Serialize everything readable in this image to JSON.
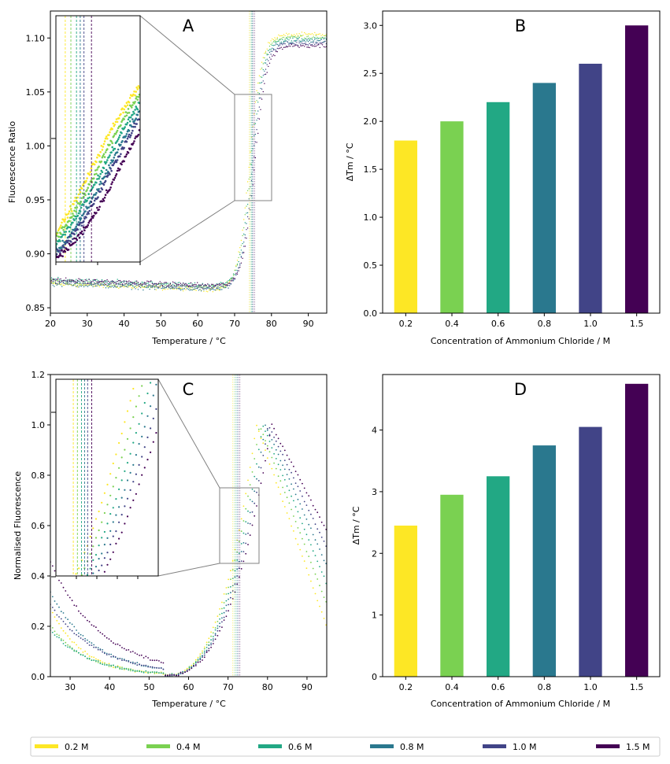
{
  "legend": {
    "position": "bottom",
    "entries": [
      {
        "label": "0.2 M",
        "color": "#fde725"
      },
      {
        "label": "0.4 M",
        "color": "#7ad151"
      },
      {
        "label": "0.6 M",
        "color": "#22a884"
      },
      {
        "label": "0.8 M",
        "color": "#2a788e"
      },
      {
        "label": "1.0 M",
        "color": "#414487"
      },
      {
        "label": "1.5 M",
        "color": "#440154"
      }
    ]
  },
  "chart_data": [
    {
      "panel": "A",
      "type": "scatter",
      "xlabel": "Temperature / °C",
      "ylabel": "Fluorescence Ratio",
      "xlim": [
        20,
        95
      ],
      "ylim": [
        0.845,
        1.125
      ],
      "xticks": [
        "20",
        "30",
        "40",
        "50",
        "60",
        "70",
        "80",
        "90"
      ],
      "yticks": [
        "0.85",
        "0.90",
        "0.95",
        "1.00",
        "1.05",
        "1.10"
      ],
      "series_tm": [
        74.0,
        74.3,
        74.6,
        74.8,
        75.0,
        75.4
      ],
      "zoom_box": {
        "x": [
          70,
          80
        ],
        "y": [
          0.95,
          1.05
        ]
      }
    },
    {
      "panel": "B",
      "type": "bar",
      "title": "B",
      "xlabel": "Concentration of Ammonium Chloride / M",
      "ylabel": "ΔTm / °C",
      "categories": [
        "0.2",
        "0.4",
        "0.6",
        "0.8",
        "1.0",
        "1.5"
      ],
      "values": [
        1.8,
        2.0,
        2.2,
        2.4,
        2.6,
        3.0
      ],
      "ylim": [
        0,
        3.15
      ],
      "yticks": [
        "0.0",
        "0.5",
        "1.0",
        "1.5",
        "2.0",
        "2.5",
        "3.0"
      ]
    },
    {
      "panel": "C",
      "type": "scatter",
      "xlabel": "Temperature / °C",
      "ylabel": "Normalised Fluorescence",
      "xlim": [
        25,
        95
      ],
      "ylim": [
        0.0,
        1.2
      ],
      "xticks": [
        "30",
        "40",
        "50",
        "60",
        "70",
        "80",
        "90"
      ],
      "yticks": [
        "0.0",
        "0.2",
        "0.4",
        "0.6",
        "0.8",
        "1.0",
        "1.2"
      ],
      "series_tm": [
        71.2,
        71.6,
        72.0,
        72.3,
        72.6,
        73.0
      ],
      "zoom_box": {
        "x": [
          68,
          78
        ],
        "y": [
          0.45,
          0.75
        ]
      }
    },
    {
      "panel": "D",
      "type": "bar",
      "title": "D",
      "xlabel": "Concentration of Ammonium Chloride / M",
      "ylabel": "ΔTm / °C",
      "categories": [
        "0.2",
        "0.4",
        "0.6",
        "0.8",
        "1.0",
        "1.5"
      ],
      "values": [
        2.45,
        2.95,
        3.25,
        3.75,
        4.05,
        4.75
      ],
      "ylim": [
        0,
        4.9
      ],
      "yticks": [
        "0",
        "1",
        "2",
        "3",
        "4"
      ]
    }
  ]
}
